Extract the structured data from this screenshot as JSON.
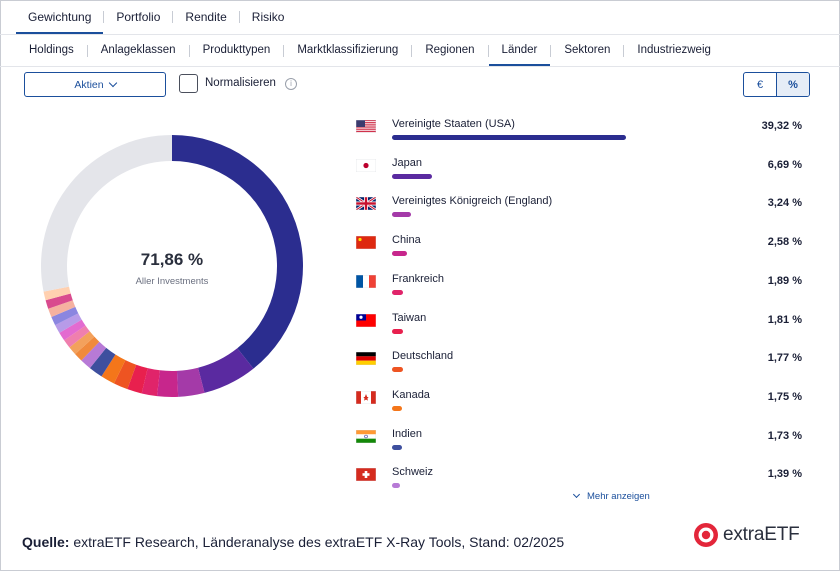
{
  "top_tabs": [
    "Gewichtung",
    "Portfolio",
    "Rendite",
    "Risiko"
  ],
  "sub_tabs": [
    "Holdings",
    "Anlageklassen",
    "Produkttypen",
    "Marktklassifizierung",
    "Regionen",
    "Länder",
    "Sektoren",
    "Industriezweig"
  ],
  "controls": {
    "dropdown_label": "Aktien",
    "normalize_label": "Normalisieren",
    "info_icon": "i",
    "toggle_euro": "€",
    "toggle_percent": "%"
  },
  "donut": {
    "center_value": "71,86 %",
    "center_caption": "Aller Investments"
  },
  "countries": [
    {
      "name": "Vereinigte Staaten (USA)",
      "pct_label": "39,32 %",
      "value": 39.32,
      "color": "#2b2d8f",
      "flag": "us-flag"
    },
    {
      "name": "Japan",
      "pct_label": "6,69 %",
      "value": 6.69,
      "color": "#5a2aa0",
      "flag": "japan-flag"
    },
    {
      "name": "Vereinigtes Königreich (England)",
      "pct_label": "3,24 %",
      "value": 3.24,
      "color": "#a43aa8",
      "flag": "uk-flag"
    },
    {
      "name": "China",
      "pct_label": "2,58 %",
      "value": 2.58,
      "color": "#c7268c",
      "flag": "china-flag"
    },
    {
      "name": "Frankreich",
      "pct_label": "1,89 %",
      "value": 1.89,
      "color": "#e0246a",
      "flag": "france-flag"
    },
    {
      "name": "Taiwan",
      "pct_label": "1,81 %",
      "value": 1.81,
      "color": "#e8204e",
      "flag": "taiwan-flag"
    },
    {
      "name": "Deutschland",
      "pct_label": "1,77 %",
      "value": 1.77,
      "color": "#ee5422",
      "flag": "germany-flag"
    },
    {
      "name": "Kanada",
      "pct_label": "1,75 %",
      "value": 1.75,
      "color": "#f4761a",
      "flag": "canada-flag"
    },
    {
      "name": "Indien",
      "pct_label": "1,73 %",
      "value": 1.73,
      "color": "#3e4f9e",
      "flag": "india-flag"
    },
    {
      "name": "Schweiz",
      "pct_label": "1,39 %",
      "value": 1.39,
      "color": "#b77ad6",
      "flag": "switzerland-flag"
    }
  ],
  "donut_rest_colors": [
    "#f08a3c",
    "#f3a15c",
    "#ef7fae",
    "#e36bd0",
    "#b79be8",
    "#8b86e0",
    "#f5b1a0",
    "#d94b8e",
    "#ffd0b0"
  ],
  "remainder_color": "#e4e5ea",
  "more_label": "Mehr anzeigen",
  "source": {
    "label": "Quelle:",
    "text": " extraETF Research, Länderanalyse des extraETF X-Ray Tools, Stand: 02/2025"
  },
  "logo_text": "extraETF"
}
